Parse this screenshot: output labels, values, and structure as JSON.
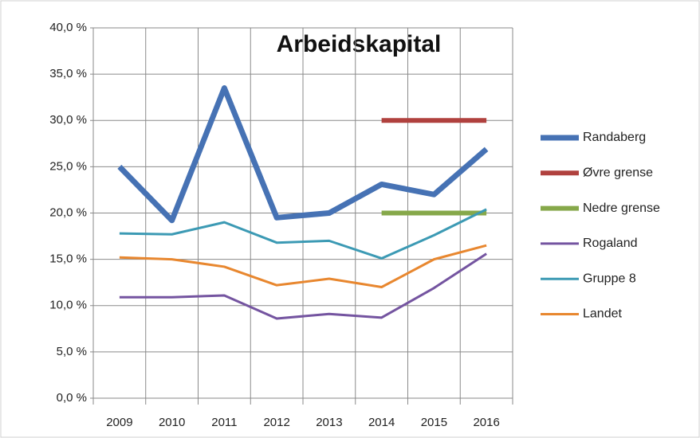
{
  "chart_data": {
    "type": "line",
    "title": "Arbeidskapital",
    "categories": [
      "2009",
      "2010",
      "2011",
      "2012",
      "2013",
      "2014",
      "2015",
      "2016"
    ],
    "series": [
      {
        "name": "Randaberg",
        "color": "#4672b4",
        "values": [
          25.0,
          19.2,
          33.5,
          19.5,
          20.0,
          23.1,
          22.0,
          26.9
        ]
      },
      {
        "name": "Øvre grense",
        "color": "#b0413e",
        "values": [
          null,
          null,
          null,
          null,
          null,
          30,
          30,
          30
        ]
      },
      {
        "name": "Nedre grense",
        "color": "#86a84a",
        "values": [
          null,
          null,
          null,
          null,
          null,
          20,
          20,
          20
        ]
      },
      {
        "name": "Rogaland",
        "color": "#7454a0",
        "values": [
          10.9,
          10.9,
          11.1,
          8.6,
          9.1,
          8.7,
          11.9,
          15.6
        ]
      },
      {
        "name": "Gruppe 8",
        "color": "#3c9ab4",
        "values": [
          17.8,
          17.7,
          19.0,
          16.8,
          17.0,
          15.1,
          17.6,
          20.4
        ]
      },
      {
        "name": "Landet",
        "color": "#e8872f",
        "values": [
          15.2,
          15.0,
          14.2,
          12.2,
          12.9,
          12.0,
          15.0,
          16.5
        ]
      }
    ],
    "ylim": [
      0,
      40
    ],
    "yticks": [
      {
        "value": 0,
        "label": "0,0 %"
      },
      {
        "value": 5,
        "label": "5,0 %"
      },
      {
        "value": 10,
        "label": "10,0 %"
      },
      {
        "value": 15,
        "label": "15,0 %"
      },
      {
        "value": 20,
        "label": "20,0 %"
      },
      {
        "value": 25,
        "label": "25,0 %"
      },
      {
        "value": 30,
        "label": "30,0 %"
      },
      {
        "value": 35,
        "label": "35,0 %"
      },
      {
        "value": 40,
        "label": "40,0 %"
      }
    ],
    "grid": true,
    "legend": "right"
  }
}
